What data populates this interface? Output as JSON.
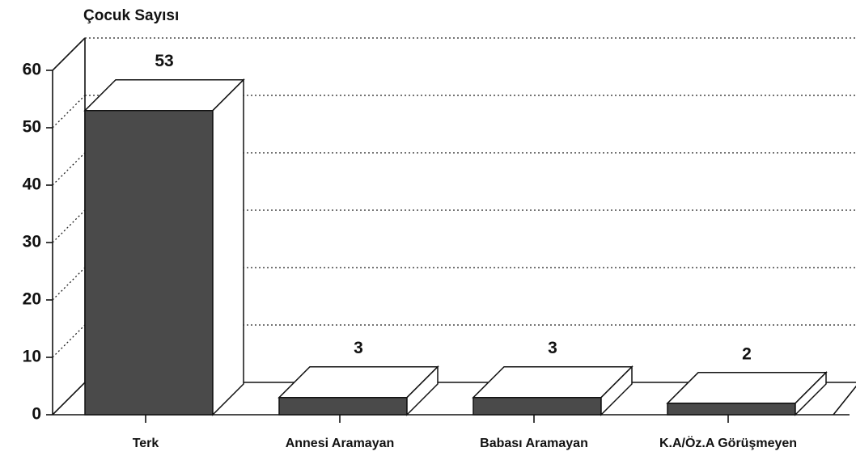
{
  "chart_data": {
    "type": "bar3d",
    "y_axis_label": "Çocuk Sayısı",
    "categories": [
      "Terk",
      "Annesi Aramayan",
      "Babası Aramayan",
      "K.A/Öz.A Görüşmeyen"
    ],
    "values": [
      53,
      3,
      3,
      2
    ],
    "color": "#4a4a4a",
    "ylim": [
      0,
      60
    ],
    "yticks": [
      0,
      10,
      20,
      30,
      40,
      50,
      60
    ],
    "grid": true
  }
}
